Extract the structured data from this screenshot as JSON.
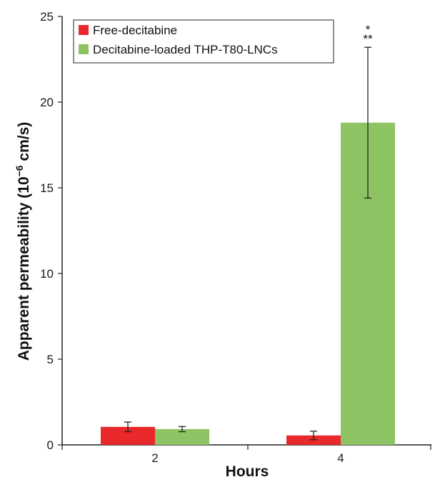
{
  "chart_data": {
    "type": "bar",
    "title": "",
    "xlabel": "Hours",
    "ylabel_main": "Apparent permeability (10",
    "ylabel_sup": "−6",
    "ylabel_tail": " cm/s)",
    "categories": [
      "2",
      "4"
    ],
    "ylim": [
      0,
      25
    ],
    "yticks": [
      "0",
      "5",
      "10",
      "15",
      "20",
      "25"
    ],
    "series": [
      {
        "name": "Free-decitabine",
        "color": "#e8282b",
        "values": [
          1.05,
          0.55
        ],
        "errors": [
          0.28,
          0.25
        ]
      },
      {
        "name": "Decitabine-loaded THP-T80-LNCs",
        "color": "#8dc363",
        "values": [
          0.92,
          18.8
        ],
        "errors": [
          0.15,
          4.4
        ]
      }
    ],
    "annotations": [
      {
        "category": "4",
        "series": "Decitabine-loaded THP-T80-LNCs",
        "lines": [
          "*",
          "**"
        ]
      }
    ],
    "legend": "top-left",
    "grid": false
  }
}
